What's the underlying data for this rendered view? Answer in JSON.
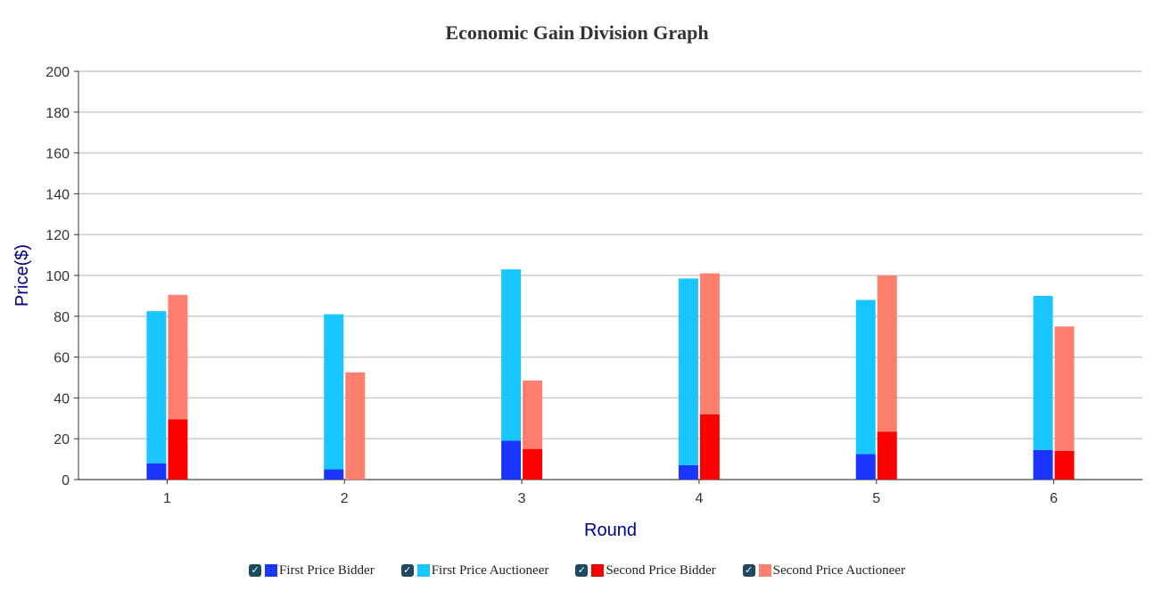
{
  "chart_data": {
    "type": "bar",
    "title": "Economic Gain Division Graph",
    "xlabel": "Round",
    "ylabel": "Price($)",
    "ylim": [
      0,
      200
    ],
    "yticks": [
      0,
      20,
      40,
      60,
      80,
      100,
      120,
      140,
      160,
      180,
      200
    ],
    "categories": [
      "1",
      "2",
      "3",
      "4",
      "5",
      "6"
    ],
    "grid": true,
    "legend_position": "bottom",
    "stacks": [
      {
        "stack": "First Price",
        "series": [
          {
            "name": "First Price Bidder",
            "color": "#1a35ff",
            "values": [
              8,
              5,
              19,
              7,
              12.5,
              14.5
            ]
          },
          {
            "name": "First Price Auctioneer",
            "color": "#19c6ff",
            "values": [
              74.5,
              76,
              84,
              91.5,
              75.5,
              75.5
            ]
          }
        ]
      },
      {
        "stack": "Second Price",
        "series": [
          {
            "name": "Second Price Bidder",
            "color": "#ff0000",
            "values": [
              29.5,
              0,
              15,
              32,
              23.5,
              14
            ]
          },
          {
            "name": "Second Price Auctioneer",
            "color": "#ff7f6e",
            "values": [
              61,
              52.5,
              33.5,
              69,
              76.5,
              61
            ]
          }
        ]
      }
    ]
  },
  "legend": {
    "check_glyph": "✓",
    "items": [
      {
        "label": "First Price Bidder",
        "color": "#1a35ff"
      },
      {
        "label": "First Price Auctioneer",
        "color": "#19c6ff"
      },
      {
        "label": "Second Price Bidder",
        "color": "#ff0000"
      },
      {
        "label": "Second Price Auctioneer",
        "color": "#ff7f6e"
      }
    ]
  },
  "colors": {
    "axis_title": "#00008b",
    "grid": "#cccccc",
    "axis": "#333333"
  }
}
